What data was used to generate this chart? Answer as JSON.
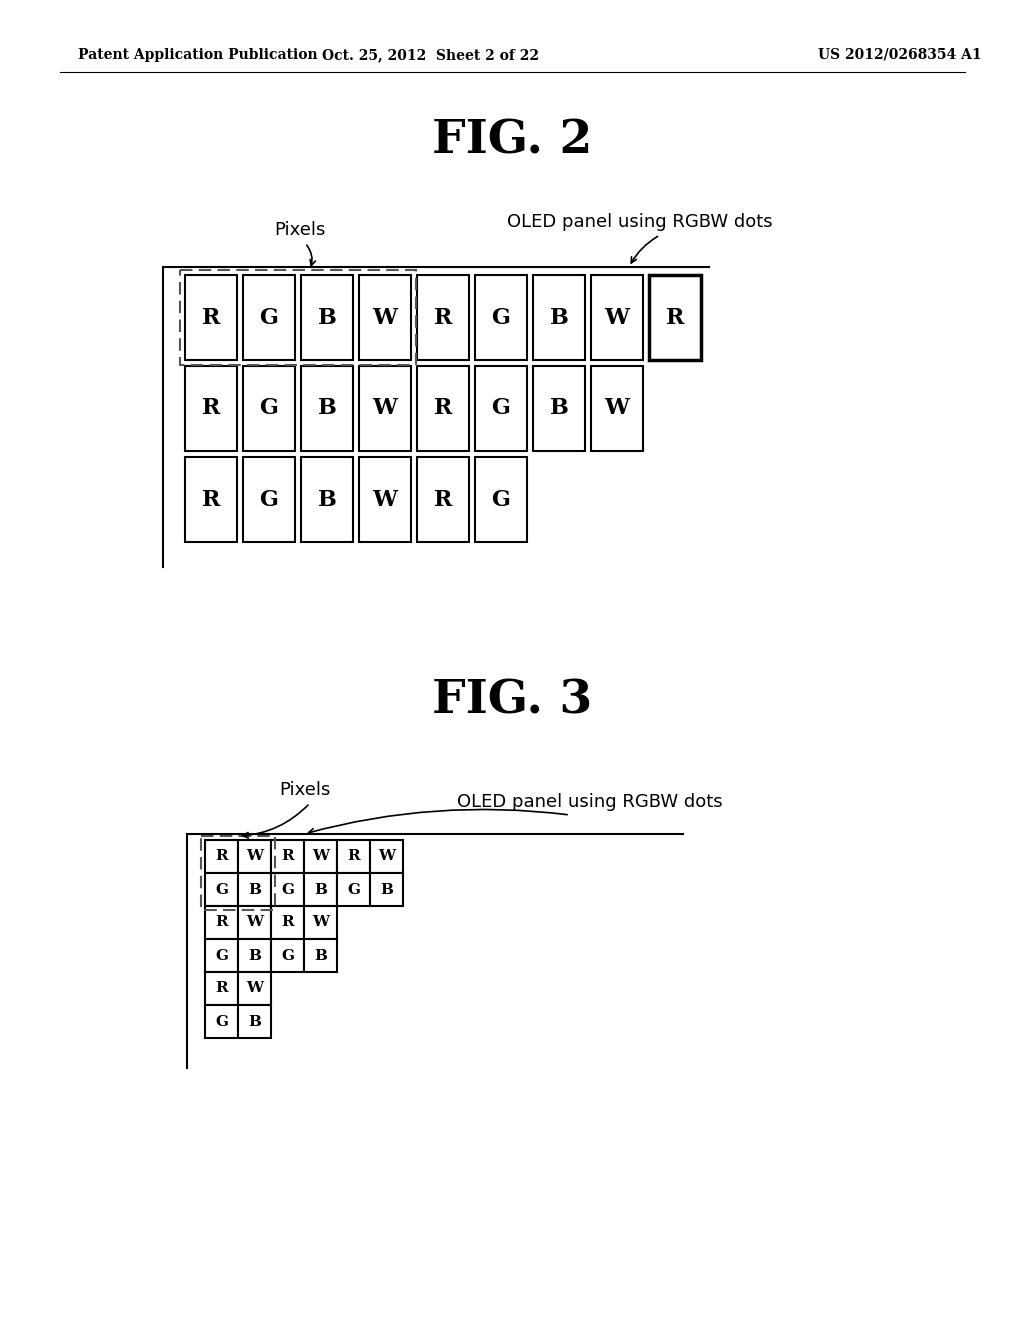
{
  "header_left": "Patent Application Publication",
  "header_mid": "Oct. 25, 2012  Sheet 2 of 22",
  "header_right": "US 2012/0268354 A1",
  "fig2_title": "FIG. 2",
  "fig3_title": "FIG. 3",
  "fig2_label_pixels": "Pixels",
  "fig2_label_oled": "OLED panel using RGBW dots",
  "fig3_label_pixels": "Pixels",
  "fig3_label_oled": "OLED panel using RGBW dots",
  "fig2_rows": [
    [
      "R",
      "G",
      "B",
      "W",
      "R",
      "G",
      "B",
      "W",
      "R"
    ],
    [
      "R",
      "G",
      "B",
      "W",
      "R",
      "G",
      "B",
      "W"
    ],
    [
      "R",
      "G",
      "B",
      "W",
      "R",
      "G"
    ]
  ],
  "fig3_rows": [
    [
      "R",
      "W",
      "R",
      "W",
      "R",
      "W"
    ],
    [
      "G",
      "B",
      "G",
      "B",
      "G",
      "B"
    ],
    [
      "R",
      "W",
      "R",
      "W"
    ],
    [
      "G",
      "B",
      "G",
      "B"
    ],
    [
      "R",
      "W"
    ],
    [
      "G",
      "B"
    ]
  ],
  "bg_color": "#ffffff",
  "text_color": "#000000"
}
